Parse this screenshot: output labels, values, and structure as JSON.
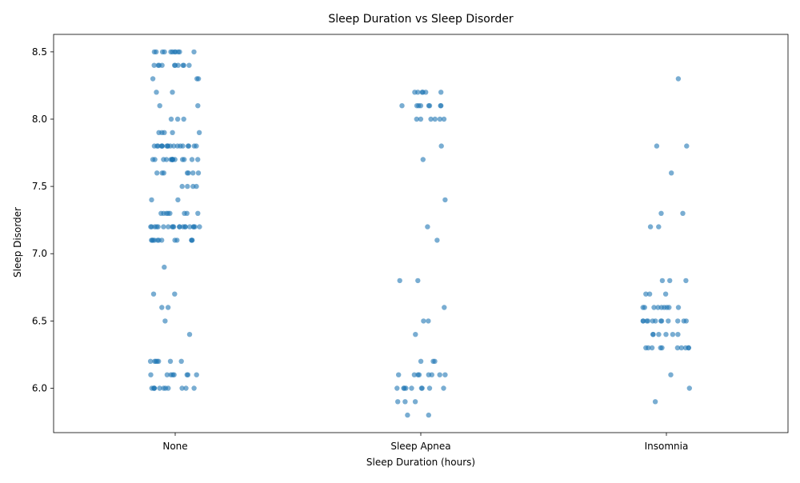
{
  "chart_data": {
    "type": "scatter",
    "title": "Sleep Duration vs Sleep Disorder",
    "xlabel": "Sleep Duration (hours)",
    "ylabel": "Sleep Disorder",
    "categories": [
      "None",
      "Sleep Apnea",
      "Insomnia"
    ],
    "ylim": [
      5.67,
      8.63
    ],
    "yticks": [
      "6.0",
      "6.5",
      "7.0",
      "7.5",
      "8.0",
      "8.5"
    ],
    "grid": false,
    "color": "#1f77b4",
    "series": [
      {
        "category": "None",
        "values": [
          8.5,
          8.5,
          8.5,
          8.5,
          8.5,
          8.5,
          8.5,
          8.5,
          8.5,
          8.5,
          8.5,
          8.4,
          8.4,
          8.4,
          8.4,
          8.4,
          8.4,
          8.4,
          8.4,
          8.4,
          8.4,
          8.3,
          8.3,
          8.3,
          8.2,
          8.2,
          8.1,
          8.1,
          8.0,
          8.0,
          8.0,
          7.9,
          7.9,
          7.9,
          7.9,
          7.9,
          7.8,
          7.8,
          7.8,
          7.8,
          7.8,
          7.8,
          7.8,
          7.8,
          7.8,
          7.8,
          7.8,
          7.8,
          7.8,
          7.8,
          7.8,
          7.8,
          7.8,
          7.8,
          7.7,
          7.7,
          7.7,
          7.7,
          7.7,
          7.7,
          7.7,
          7.7,
          7.7,
          7.7,
          7.7,
          7.7,
          7.7,
          7.7,
          7.7,
          7.6,
          7.6,
          7.6,
          7.6,
          7.6,
          7.6,
          7.6,
          7.5,
          7.5,
          7.5,
          7.5,
          7.4,
          7.4,
          7.3,
          7.3,
          7.3,
          7.3,
          7.3,
          7.3,
          7.3,
          7.3,
          7.2,
          7.2,
          7.2,
          7.2,
          7.2,
          7.2,
          7.2,
          7.2,
          7.2,
          7.2,
          7.2,
          7.2,
          7.2,
          7.2,
          7.2,
          7.2,
          7.2,
          7.2,
          7.2,
          7.2,
          7.1,
          7.1,
          7.1,
          7.1,
          7.1,
          7.1,
          7.1,
          7.1,
          7.1,
          7.1,
          7.1,
          7.1,
          6.9,
          6.7,
          6.7,
          6.6,
          6.6,
          6.5,
          6.4,
          6.2,
          6.2,
          6.2,
          6.2,
          6.2,
          6.2,
          6.2,
          6.1,
          6.1,
          6.1,
          6.1,
          6.1,
          6.1,
          6.1,
          6.1,
          6.0,
          6.0,
          6.0,
          6.0,
          6.0,
          6.0,
          6.0,
          6.0,
          6.0,
          6.0,
          6.0
        ]
      },
      {
        "category": "Sleep Apnea",
        "values": [
          8.2,
          8.2,
          8.2,
          8.2,
          8.2,
          8.2,
          8.1,
          8.1,
          8.1,
          8.1,
          8.1,
          8.1,
          8.1,
          8.1,
          8.0,
          8.0,
          8.0,
          8.0,
          8.0,
          8.0,
          7.8,
          7.7,
          7.4,
          7.2,
          7.1,
          6.8,
          6.8,
          6.6,
          6.5,
          6.5,
          6.4,
          6.2,
          6.2,
          6.2,
          6.1,
          6.1,
          6.1,
          6.1,
          6.1,
          6.1,
          6.1,
          6.1,
          6.0,
          6.0,
          6.0,
          6.0,
          6.0,
          6.0,
          6.0,
          6.0,
          6.0,
          5.9,
          5.9,
          5.9,
          5.8,
          5.8
        ]
      },
      {
        "category": "Insomnia",
        "values": [
          8.3,
          7.8,
          7.8,
          7.6,
          7.3,
          7.3,
          7.2,
          7.2,
          6.8,
          6.8,
          6.8,
          6.7,
          6.7,
          6.7,
          6.6,
          6.6,
          6.6,
          6.6,
          6.6,
          6.6,
          6.6,
          6.6,
          6.6,
          6.5,
          6.5,
          6.5,
          6.5,
          6.5,
          6.5,
          6.5,
          6.5,
          6.5,
          6.5,
          6.5,
          6.5,
          6.4,
          6.4,
          6.4,
          6.4,
          6.4,
          6.4,
          6.3,
          6.3,
          6.3,
          6.3,
          6.3,
          6.3,
          6.3,
          6.3,
          6.3,
          6.3,
          6.1,
          6.0,
          5.9
        ]
      }
    ]
  }
}
